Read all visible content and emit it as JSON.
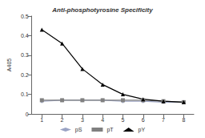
{
  "chart_data": {
    "type": "line",
    "title": "Anti-phosphotyrosine Specificity",
    "y_label": "A405",
    "categories": [
      "1",
      "2",
      "3",
      "4",
      "5",
      "6",
      "7",
      "8"
    ],
    "series": [
      {
        "name": "pS",
        "color": "#9aa3c4",
        "marker": "diamond",
        "values": [
          0.065,
          0.07,
          0.07,
          0.07,
          0.065,
          0.065,
          0.06,
          0.06
        ]
      },
      {
        "name": "pT",
        "color": "#808080",
        "marker": "square",
        "values": [
          0.07,
          0.07,
          0.07,
          0.07,
          0.07,
          0.07,
          0.065,
          0.06
        ]
      },
      {
        "name": "pY",
        "color": "#000000",
        "marker": "triangle",
        "values": [
          0.43,
          0.36,
          0.23,
          0.15,
          0.1,
          0.075,
          0.065,
          0.06
        ]
      }
    ],
    "ylim": [
      0,
      0.5
    ],
    "yticks": [
      0,
      0.1,
      0.2,
      0.3,
      0.4,
      0.5
    ],
    "grid": false,
    "legend": "bottom"
  }
}
